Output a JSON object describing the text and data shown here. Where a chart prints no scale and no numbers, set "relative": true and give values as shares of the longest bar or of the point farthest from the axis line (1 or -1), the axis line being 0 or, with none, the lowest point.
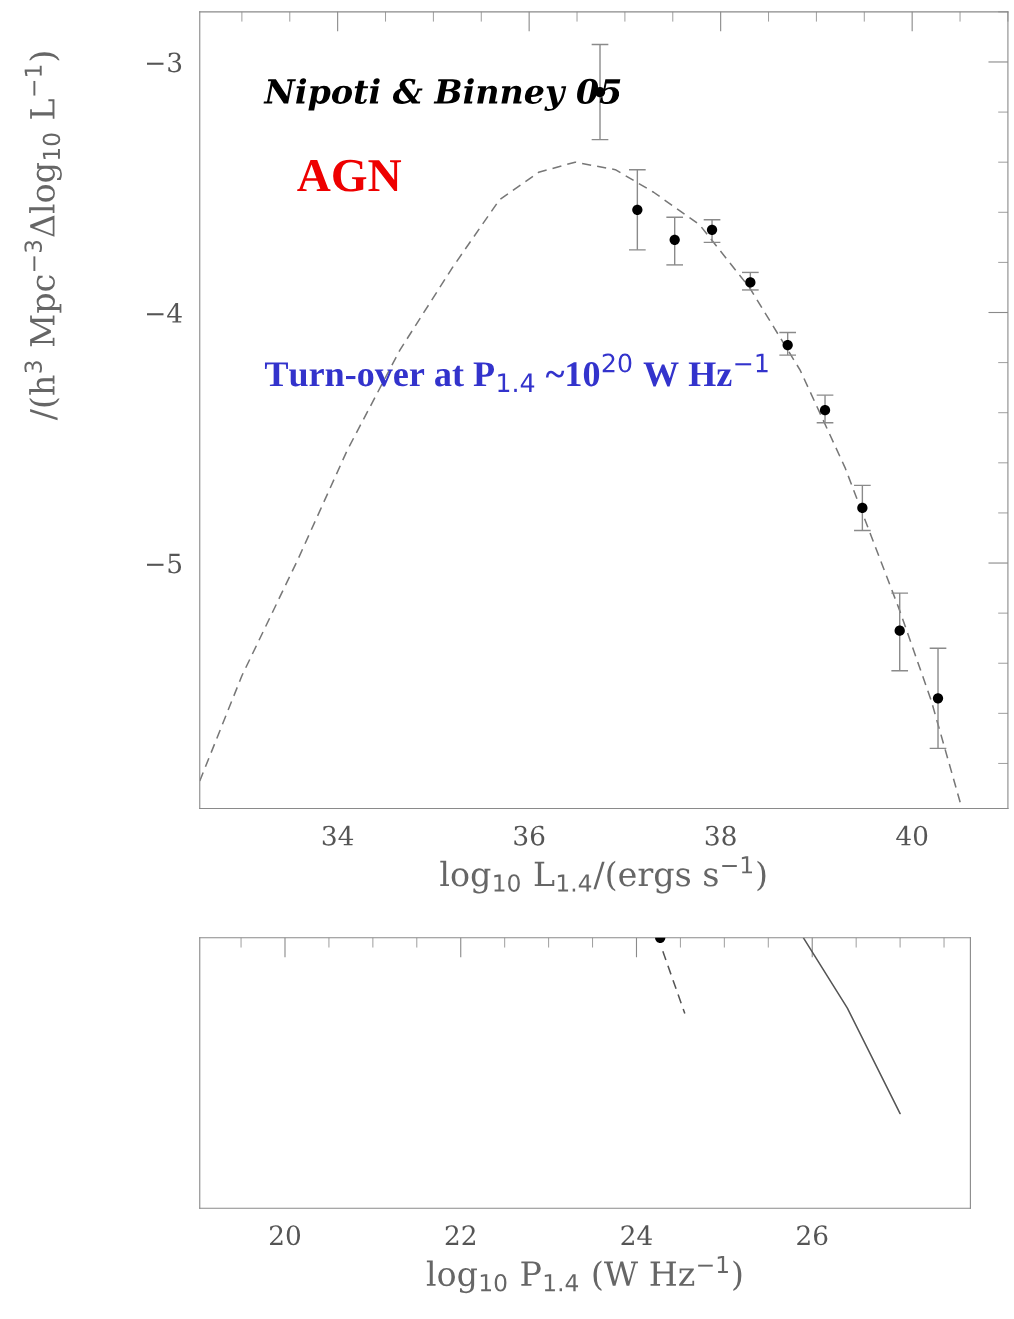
{
  "chart_data": [
    {
      "type": "scatter",
      "xlabel": "log$_{10}$ L$_{1.4}$/(ergs s$^{−1}$)",
      "ylabel": "/(h$^{3}$ Mpc$^{−3}$Δlog$_{10}$ L$^{−1}$)",
      "xlim": [
        32.56,
        41.0
      ],
      "ylim": [
        -5.98,
        -2.8
      ],
      "xticks": [
        34,
        36,
        38,
        40
      ],
      "yticks": [
        {
          "value": -3,
          "label": "−3"
        },
        {
          "value": -4,
          "label": "−4"
        },
        {
          "value": -5,
          "label": "−5"
        }
      ],
      "annotations": [
        "Nipoti & Binney 05",
        "AGN",
        "Turn-over at P$_{1.4}$ ~10$^{20}$ W Hz$^{−1}$"
      ],
      "grid": false,
      "legend": false,
      "series": [
        {
          "color": "#000000",
          "marker": "circle",
          "x": [
            36.74,
            37.13,
            37.52,
            37.91,
            38.31,
            38.7,
            39.09,
            39.48,
            39.87,
            40.27
          ],
          "values": [
            -3.12,
            -3.59,
            -3.71,
            -3.67,
            -3.88,
            -4.13,
            -4.39,
            -4.78,
            -5.27,
            -5.54
          ],
          "errors": [
            [
              -3.31,
              -2.93
            ],
            [
              -3.75,
              -3.43
            ],
            [
              -3.81,
              -3.62
            ],
            [
              -3.72,
              -3.63
            ],
            [
              -3.91,
              -3.84
            ],
            [
              -4.17,
              -4.08
            ],
            [
              -4.44,
              -4.33
            ],
            [
              -4.87,
              -4.69
            ],
            [
              -5.43,
              -5.12
            ],
            [
              -5.74,
              -5.34
            ]
          ]
        },
        {
          "type": "line",
          "color": "#777777",
          "line_style": "dashed",
          "marker": "none",
          "x": [
            32.56,
            33.0,
            33.58,
            34.1,
            34.65,
            35.2,
            35.69,
            36.1,
            36.48,
            36.9,
            37.3,
            37.78,
            38.3,
            38.83,
            39.3,
            39.87,
            40.2,
            40.52
          ],
          "values": [
            -5.87,
            -5.45,
            -4.99,
            -4.55,
            -4.15,
            -3.82,
            -3.55,
            -3.44,
            -3.4,
            -3.43,
            -3.52,
            -3.65,
            -3.9,
            -4.23,
            -4.62,
            -5.19,
            -5.55,
            -5.98
          ]
        }
      ]
    },
    {
      "type": "scatter",
      "relative": true,
      "tick_labels": "x",
      "xlabel": "log$_{10}$ P$_{1.4}$ (W Hz$^{−1}$)",
      "xlim": [
        19.03,
        27.8
      ],
      "xticks": [
        20,
        22,
        24,
        26
      ],
      "grid": false,
      "legend": false,
      "series": [
        {
          "color": "#000000",
          "marker": "circle",
          "x": [
            24.27
          ],
          "values": [
            1.0
          ]
        },
        {
          "type": "line",
          "color": "#555555",
          "line_style": "dashed",
          "marker": "none",
          "x": [
            24.3,
            24.55
          ],
          "values": [
            0.95,
            0.72
          ]
        },
        {
          "type": "line",
          "color": "#555555",
          "line_style": "solid",
          "marker": "none",
          "x": [
            25.9,
            26.4,
            27.0
          ],
          "values": [
            1.0,
            0.74,
            0.35
          ]
        }
      ]
    }
  ]
}
